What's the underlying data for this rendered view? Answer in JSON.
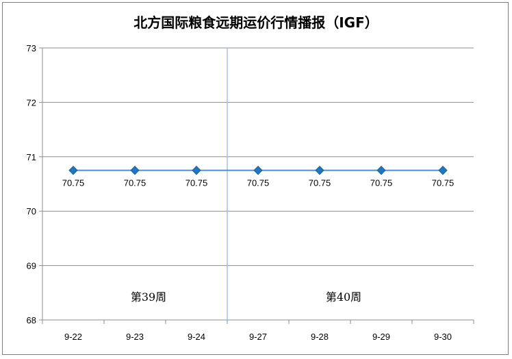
{
  "chart_data": {
    "type": "line",
    "title": "北方国际粮食远期运价行情播报（IGF）",
    "categories": [
      "9-22",
      "9-23",
      "9-24",
      "9-27",
      "9-28",
      "9-29",
      "9-30"
    ],
    "series": [
      {
        "values": [
          70.75,
          70.75,
          70.75,
          70.75,
          70.75,
          70.75,
          70.75
        ],
        "labels": [
          "70.75",
          "70.75",
          "70.75",
          "70.75",
          "70.75",
          "70.75",
          "70.75"
        ]
      }
    ],
    "ylim": [
      68,
      73
    ],
    "yticks": [
      "68",
      "69",
      "70",
      "71",
      "72",
      "73"
    ],
    "grid": true,
    "week_labels": [
      "第39周",
      "第40周"
    ],
    "colors": {
      "line": "#4a90d9",
      "marker": "#1f77c4",
      "divider": "#9dc3e6",
      "grid": "#8c8c8c"
    }
  }
}
